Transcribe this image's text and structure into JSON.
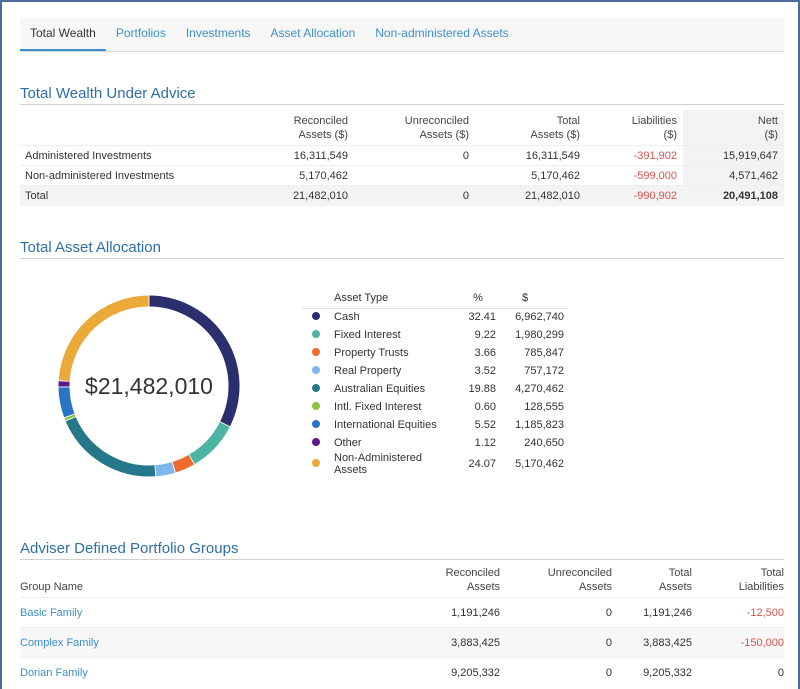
{
  "tabs": [
    {
      "label": "Total Wealth"
    },
    {
      "label": "Portfolios"
    },
    {
      "label": "Investments"
    },
    {
      "label": "Asset Allocation"
    },
    {
      "label": "Non-administered Assets"
    }
  ],
  "wealth": {
    "title": "Total Wealth Under Advice",
    "headers": {
      "reconciled": [
        "Reconciled",
        "Assets ($)"
      ],
      "unreconciled": [
        "Unreconciled",
        "Assets ($)"
      ],
      "total": [
        "Total",
        "Assets ($)"
      ],
      "liabilities": [
        "Liabilities",
        "($)"
      ],
      "nett": [
        "Nett",
        "($)"
      ]
    },
    "rows": [
      {
        "label": "Administered Investments",
        "reconciled": "16,311,549",
        "unreconciled": "0",
        "total": "16,311,549",
        "liabilities": "-391,902",
        "nett": "15,919,647"
      },
      {
        "label": "Non-administered Investments",
        "reconciled": "5,170,462",
        "unreconciled": "",
        "total": "5,170,462",
        "liabilities": "-599,000",
        "nett": "4,571,462"
      }
    ],
    "total": {
      "label": "Total",
      "reconciled": "21,482,010",
      "unreconciled": "0",
      "total": "21,482,010",
      "liabilities": "-990,902",
      "nett": "20,491,108"
    }
  },
  "allocation": {
    "title": "Total Asset Allocation",
    "center_value": "$21,482,010",
    "headers": {
      "type": "Asset Type",
      "pct": "%",
      "amount": "$"
    },
    "items": [
      {
        "name": "Cash",
        "pct": "32.41",
        "amount": "6,962,740",
        "color": "#2b2f6e"
      },
      {
        "name": "Fixed Interest",
        "pct": "9.22",
        "amount": "1,980,299",
        "color": "#4db3a2"
      },
      {
        "name": "Property Trusts",
        "pct": "3.66",
        "amount": "785,847",
        "color": "#ef6a2d"
      },
      {
        "name": "Real Property",
        "pct": "3.52",
        "amount": "757,172",
        "color": "#7fb6ec"
      },
      {
        "name": "Australian Equities",
        "pct": "19.88",
        "amount": "4,270,462",
        "color": "#24788a"
      },
      {
        "name": "Intl. Fixed Interest",
        "pct": "0.60",
        "amount": "128,555",
        "color": "#8cc63f"
      },
      {
        "name": "International Equities",
        "pct": "5.52",
        "amount": "1,185,823",
        "color": "#2a74c4"
      },
      {
        "name": "Other",
        "pct": "1.12",
        "amount": "240,650",
        "color": "#5c1a8c"
      },
      {
        "name": "Non-Administered Assets",
        "pct": "24.07",
        "amount": "5,170,462",
        "color": "#eba93a"
      }
    ]
  },
  "groups": {
    "title": "Adviser Defined Portfolio Groups",
    "headers": {
      "name": "Group Name",
      "reconciled": [
        "Reconciled",
        "Assets"
      ],
      "unreconciled": [
        "Unreconciled",
        "Assets"
      ],
      "total": [
        "Total",
        "Assets"
      ],
      "liabilities": [
        "Total",
        "Liabilities"
      ]
    },
    "rows": [
      {
        "name": "Basic Family",
        "reconciled": "1,191,246",
        "unreconciled": "0",
        "total": "1,191,246",
        "liabilities": "-12,500"
      },
      {
        "name": "Complex Family",
        "reconciled": "3,883,425",
        "unreconciled": "0",
        "total": "3,883,425",
        "liabilities": "-150,000"
      },
      {
        "name": "Dorian Family",
        "reconciled": "9,205,332",
        "unreconciled": "0",
        "total": "9,205,332",
        "liabilities": "0"
      }
    ]
  }
}
